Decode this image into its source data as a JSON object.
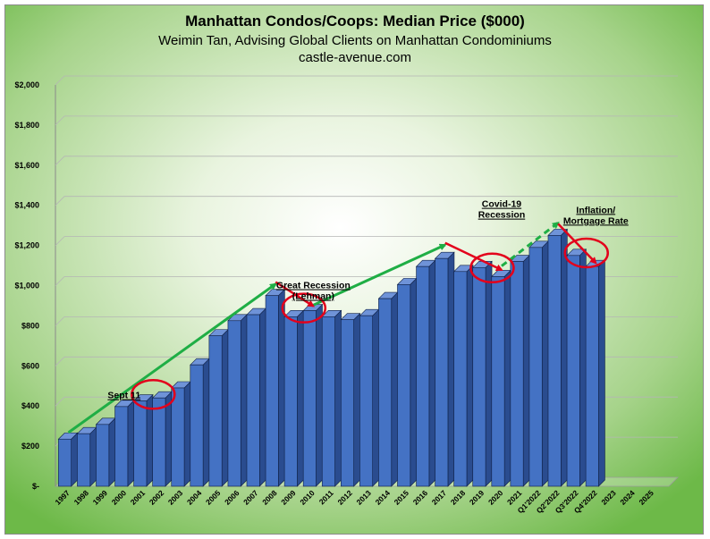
{
  "chart_data": {
    "type": "bar",
    "title": "Manhattan Condos/Coops: Median Price ($000)",
    "subtitle_lines": [
      "Weimin Tan, Advising Global Clients on Manhattan Condominiums",
      "castle-avenue.com"
    ],
    "categories": [
      "1997",
      "1998",
      "1999",
      "2000",
      "2001",
      "2002",
      "2003",
      "2004",
      "2005",
      "2006",
      "2007",
      "2008",
      "2009",
      "2010",
      "2011",
      "2012",
      "2013",
      "2014",
      "2015",
      "2016",
      "2017",
      "2018",
      "2019",
      "2020",
      "2021",
      "Q1'2022",
      "Q2'2022",
      "Q3'2022",
      "Q4'2022",
      "2023",
      "2024",
      "2025"
    ],
    "values": [
      235,
      262,
      308,
      397,
      425,
      440,
      490,
      605,
      750,
      825,
      855,
      950,
      845,
      875,
      845,
      830,
      850,
      935,
      1005,
      1095,
      1135,
      1070,
      1090,
      1045,
      1120,
      1190,
      1250,
      1150,
      1095,
      null,
      null,
      null
    ],
    "ylim": [
      0,
      2000
    ],
    "yticks": [
      "$-",
      "$200",
      "$400",
      "$600",
      "$800",
      "$1,000",
      "$1,200",
      "$1,400",
      "$1,600",
      "$1,800",
      "$2,000"
    ],
    "grid": true,
    "bar_color": "#4472c4",
    "trend_color": "#1fae45",
    "decline_color": "#e3001b",
    "circle_color": "#e3001b",
    "annotations": [
      {
        "lines": [
          "Sept 11"
        ],
        "category": "2001"
      },
      {
        "lines": [
          "Great Recession",
          "(Lehman)"
        ],
        "category": "2010"
      },
      {
        "lines": [
          "Covid-19",
          "Recession"
        ],
        "category": "2020"
      },
      {
        "lines": [
          "Inflation/",
          "Mortgage Rate"
        ],
        "category": "Q4'2022"
      }
    ],
    "trend_lines": [
      {
        "from": [
          "1997",
          250
        ],
        "to": [
          "2008",
          990
        ],
        "style": "solid"
      },
      {
        "from": [
          "2010",
          885
        ],
        "to": [
          "2017",
          1185
        ],
        "style": "solid"
      },
      {
        "from": [
          "2020",
          1080
        ],
        "to": [
          "Q2'2022",
          1295
        ],
        "style": "dashed"
      }
    ],
    "decline_arrows": [
      {
        "from": [
          "2008",
          1000
        ],
        "to": [
          "2010",
          880
        ]
      },
      {
        "from": [
          "2017",
          1195
        ],
        "to": [
          "2020",
          1060
        ]
      },
      {
        "from": [
          "Q2'2022",
          1290
        ],
        "to": [
          "Q4'2022",
          1095
        ]
      }
    ],
    "circled": [
      {
        "category": "2001",
        "value": 440
      },
      {
        "category": "2009",
        "value": 870
      },
      {
        "category": "2019",
        "value": 1070
      },
      {
        "category": "Q3'2022",
        "value": 1145
      }
    ]
  }
}
